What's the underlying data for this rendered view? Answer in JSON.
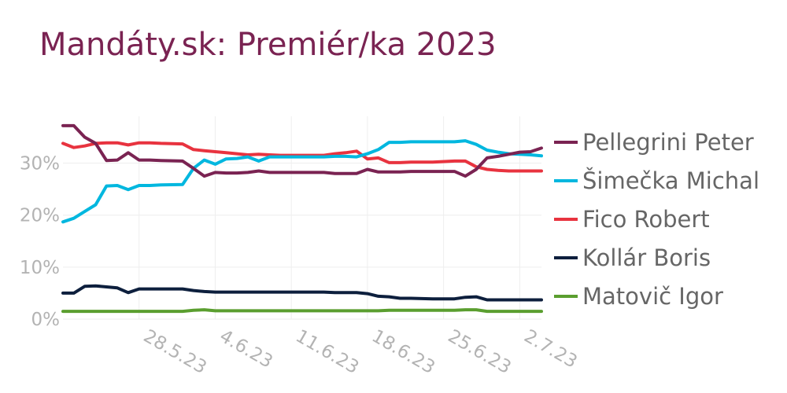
{
  "title": "Mandáty.sk: Premiér/ka 2023",
  "chart_data": {
    "type": "line",
    "title": "Mandáty.sk: Premiér/ka 2023",
    "xlabel": "",
    "ylabel": "",
    "x": [
      "2023-05-21",
      "2023-05-22",
      "2023-05-23",
      "2023-05-24",
      "2023-05-25",
      "2023-05-26",
      "2023-05-27",
      "2023-05-28",
      "2023-05-29",
      "2023-05-30",
      "2023-06-01",
      "2023-06-02",
      "2023-06-03",
      "2023-06-04",
      "2023-06-05",
      "2023-06-06",
      "2023-06-07",
      "2023-06-08",
      "2023-06-09",
      "2023-06-10",
      "2023-06-11",
      "2023-06-12",
      "2023-06-14",
      "2023-06-15",
      "2023-06-16",
      "2023-06-17",
      "2023-06-18",
      "2023-06-19",
      "2023-06-20",
      "2023-06-21",
      "2023-06-22",
      "2023-06-24",
      "2023-06-26",
      "2023-06-27",
      "2023-06-28",
      "2023-06-29",
      "2023-06-30",
      "2023-07-01",
      "2023-07-02",
      "2023-07-03",
      "2023-07-04"
    ],
    "xticks": [
      "2023-05-28",
      "2023-06-04",
      "2023-06-11",
      "2023-06-18",
      "2023-06-25",
      "2023-07-02"
    ],
    "xtick_labels": [
      "28.5.23",
      "4.6.23",
      "11.6.23",
      "18.6.23",
      "25.6.23",
      "2.7.23"
    ],
    "xlim": [
      "2023-05-21",
      "2023-07-04"
    ],
    "ylim": [
      0,
      39
    ],
    "yticks": [
      0,
      10,
      20,
      30
    ],
    "ytick_labels": [
      "0%",
      "10%",
      "20%",
      "30%"
    ],
    "grid": true,
    "legend_position": "right",
    "series": [
      {
        "name": "Pellegrini Peter",
        "color": "#7a2352",
        "values": [
          37.2,
          37.2,
          35.0,
          33.8,
          30.5,
          30.6,
          32.0,
          30.6,
          30.6,
          30.5,
          30.4,
          29.0,
          27.5,
          28.2,
          28.1,
          28.1,
          28.2,
          28.5,
          28.2,
          28.2,
          28.2,
          28.2,
          28.2,
          28.0,
          28.0,
          28.0,
          28.8,
          28.3,
          28.3,
          28.3,
          28.4,
          28.4,
          28.4,
          27.5,
          28.8,
          31.0,
          31.3,
          31.7,
          32.1,
          32.2,
          32.9
        ]
      },
      {
        "name": "Šimečka Michal",
        "color": "#00b7df",
        "values": [
          18.7,
          19.4,
          20.7,
          22.0,
          25.6,
          25.7,
          24.9,
          25.7,
          25.7,
          25.8,
          25.9,
          29.0,
          30.6,
          29.8,
          30.8,
          30.9,
          31.2,
          30.4,
          31.2,
          31.2,
          31.2,
          31.2,
          31.2,
          31.3,
          31.3,
          31.2,
          31.8,
          32.6,
          34.0,
          34.0,
          34.1,
          34.1,
          34.1,
          34.3,
          33.6,
          32.5,
          32.1,
          31.8,
          31.7,
          31.6,
          31.4
        ]
      },
      {
        "name": "Fico Robert",
        "color": "#e8333f",
        "values": [
          33.8,
          33.0,
          33.3,
          33.8,
          33.9,
          33.9,
          33.5,
          33.9,
          33.9,
          33.8,
          33.7,
          32.6,
          32.4,
          32.2,
          32.0,
          31.8,
          31.6,
          31.7,
          31.6,
          31.5,
          31.5,
          31.5,
          31.5,
          31.8,
          32.0,
          32.3,
          30.8,
          31.0,
          30.1,
          30.1,
          30.2,
          30.2,
          30.4,
          30.4,
          29.3,
          28.8,
          28.6,
          28.5,
          28.5,
          28.5,
          28.5
        ]
      },
      {
        "name": "Kollár Boris",
        "color": "#0d1f3d",
        "values": [
          5.0,
          5.0,
          6.3,
          6.4,
          6.2,
          6.0,
          5.1,
          5.8,
          5.8,
          5.8,
          5.8,
          5.5,
          5.3,
          5.2,
          5.2,
          5.2,
          5.2,
          5.2,
          5.2,
          5.2,
          5.2,
          5.2,
          5.2,
          5.1,
          5.1,
          5.1,
          4.9,
          4.4,
          4.3,
          4.0,
          4.0,
          3.9,
          3.9,
          4.2,
          4.3,
          3.7,
          3.7,
          3.7,
          3.7,
          3.7,
          3.7
        ]
      },
      {
        "name": "Matovič Igor",
        "color": "#5a9e2f",
        "values": [
          1.5,
          1.5,
          1.5,
          1.5,
          1.5,
          1.5,
          1.5,
          1.5,
          1.5,
          1.5,
          1.5,
          1.7,
          1.8,
          1.6,
          1.6,
          1.6,
          1.6,
          1.6,
          1.6,
          1.6,
          1.6,
          1.6,
          1.6,
          1.6,
          1.6,
          1.6,
          1.6,
          1.6,
          1.7,
          1.7,
          1.7,
          1.7,
          1.7,
          1.8,
          1.8,
          1.5,
          1.5,
          1.5,
          1.5,
          1.5,
          1.5
        ]
      }
    ]
  }
}
